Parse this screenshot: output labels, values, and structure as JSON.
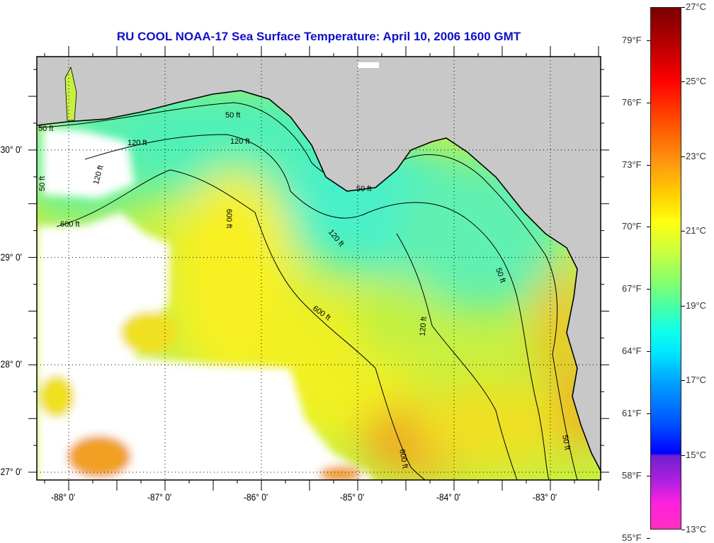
{
  "title": "RU COOL  NOAA-17  Sea Surface Temperature:  April 10, 2006 1600 GMT",
  "map": {
    "x_axis": {
      "labels": [
        {
          "lon": -88,
          "label": "-88° 0'"
        },
        {
          "lon": -87,
          "label": "-87° 0'"
        },
        {
          "lon": -86,
          "label": "-86° 0'"
        },
        {
          "lon": -85,
          "label": "-85° 0'"
        },
        {
          "lon": -84,
          "label": "-84° 0'"
        },
        {
          "lon": -83,
          "label": "-83° 0'"
        }
      ],
      "range": [
        -88.33,
        -82.48
      ]
    },
    "y_axis": {
      "labels": [
        {
          "lat": 30,
          "label": "30° 0'"
        },
        {
          "lat": 29,
          "label": "29° 0'"
        },
        {
          "lat": 28,
          "label": "28° 0'"
        },
        {
          "lat": 27,
          "label": "27° 0'"
        }
      ],
      "range": [
        26.93,
        30.87
      ]
    },
    "contour_labels": [
      "50 ft",
      "50 ft",
      "50 ft",
      "120 ft",
      "120 ft",
      "120 ft",
      "600 ft",
      "600 ft",
      "600 ft",
      "120 ft",
      "50 ft",
      "50 ft",
      "120 ft",
      "600 ft",
      "50 ft"
    ],
    "colors": {
      "land": "#c8c8c8",
      "cloud": "#ffffff",
      "title": "#1010c8"
    }
  },
  "colorbar": {
    "celsius": [
      {
        "value": 27,
        "label": "27°C"
      },
      {
        "value": 25,
        "label": "25°C"
      },
      {
        "value": 23,
        "label": "23°C"
      },
      {
        "value": 21,
        "label": "21°C"
      },
      {
        "value": 19,
        "label": "19°C"
      },
      {
        "value": 17,
        "label": "17°C"
      },
      {
        "value": 15,
        "label": "15°C"
      },
      {
        "value": 13,
        "label": "13°C"
      }
    ],
    "fahrenheit": [
      {
        "value": 79,
        "label": "79°F"
      },
      {
        "value": 76,
        "label": "76°F"
      },
      {
        "value": 73,
        "label": "73°F"
      },
      {
        "value": 70,
        "label": "70°F"
      },
      {
        "value": 67,
        "label": "67°F"
      },
      {
        "value": 64,
        "label": "64°F"
      },
      {
        "value": 61,
        "label": "61°F"
      },
      {
        "value": 58,
        "label": "58°F"
      },
      {
        "value": 55,
        "label": "55°F"
      }
    ],
    "range_c": [
      13,
      27
    ]
  }
}
